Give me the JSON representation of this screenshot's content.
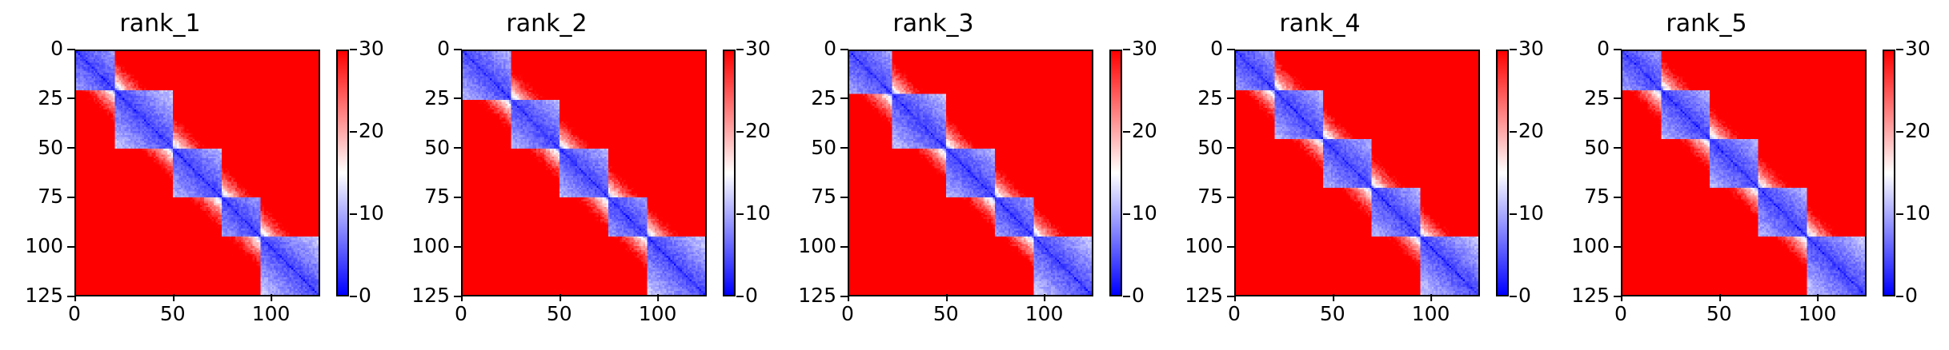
{
  "chart_data": [
    {
      "type": "heatmap",
      "title": "rank_1",
      "xlim": [
        0,
        125
      ],
      "ylim": [
        125,
        0
      ],
      "xticks": [
        "0",
        "50",
        "100"
      ],
      "yticks": [
        "0",
        "25",
        "50",
        "75",
        "100",
        "125"
      ],
      "colorbar": {
        "range": [
          0,
          30
        ],
        "ticks": [
          "0",
          "10",
          "20",
          "30"
        ]
      },
      "colors": {
        "low": "#0000ff",
        "mid": "#ffffff",
        "high": "#ff0000"
      },
      "domain_boundaries": [
        0,
        20,
        50,
        75,
        95,
        125
      ]
    },
    {
      "type": "heatmap",
      "title": "rank_2",
      "xlim": [
        0,
        125
      ],
      "ylim": [
        125,
        0
      ],
      "xticks": [
        "0",
        "50",
        "100"
      ],
      "yticks": [
        "0",
        "25",
        "50",
        "75",
        "100",
        "125"
      ],
      "colorbar": {
        "range": [
          0,
          30
        ],
        "ticks": [
          "0",
          "10",
          "20",
          "30"
        ]
      },
      "colors": {
        "low": "#0000ff",
        "mid": "#ffffff",
        "high": "#ff0000"
      },
      "domain_boundaries": [
        0,
        25,
        50,
        75,
        95,
        125
      ]
    },
    {
      "type": "heatmap",
      "title": "rank_3",
      "xlim": [
        0,
        125
      ],
      "ylim": [
        125,
        0
      ],
      "xticks": [
        "0",
        "50",
        "100"
      ],
      "yticks": [
        "0",
        "25",
        "50",
        "75",
        "100",
        "125"
      ],
      "colorbar": {
        "range": [
          0,
          30
        ],
        "ticks": [
          "0",
          "10",
          "20",
          "30"
        ]
      },
      "colors": {
        "low": "#0000ff",
        "mid": "#ffffff",
        "high": "#ff0000"
      },
      "domain_boundaries": [
        0,
        22,
        50,
        75,
        95,
        125
      ]
    },
    {
      "type": "heatmap",
      "title": "rank_4",
      "xlim": [
        0,
        125
      ],
      "ylim": [
        125,
        0
      ],
      "xticks": [
        "0",
        "50",
        "100"
      ],
      "yticks": [
        "0",
        "25",
        "50",
        "75",
        "100",
        "125"
      ],
      "colorbar": {
        "range": [
          0,
          30
        ],
        "ticks": [
          "0",
          "10",
          "20",
          "30"
        ]
      },
      "colors": {
        "low": "#0000ff",
        "mid": "#ffffff",
        "high": "#ff0000"
      },
      "domain_boundaries": [
        0,
        20,
        45,
        70,
        95,
        125
      ]
    },
    {
      "type": "heatmap",
      "title": "rank_5",
      "xlim": [
        0,
        125
      ],
      "ylim": [
        125,
        0
      ],
      "xticks": [
        "0",
        "50",
        "100"
      ],
      "yticks": [
        "0",
        "25",
        "50",
        "75",
        "100",
        "125"
      ],
      "colorbar": {
        "range": [
          0,
          30
        ],
        "ticks": [
          "0",
          "10",
          "20",
          "30"
        ]
      },
      "colors": {
        "low": "#0000ff",
        "mid": "#ffffff",
        "high": "#ff0000"
      },
      "domain_boundaries": [
        0,
        20,
        45,
        70,
        95,
        125
      ]
    }
  ]
}
